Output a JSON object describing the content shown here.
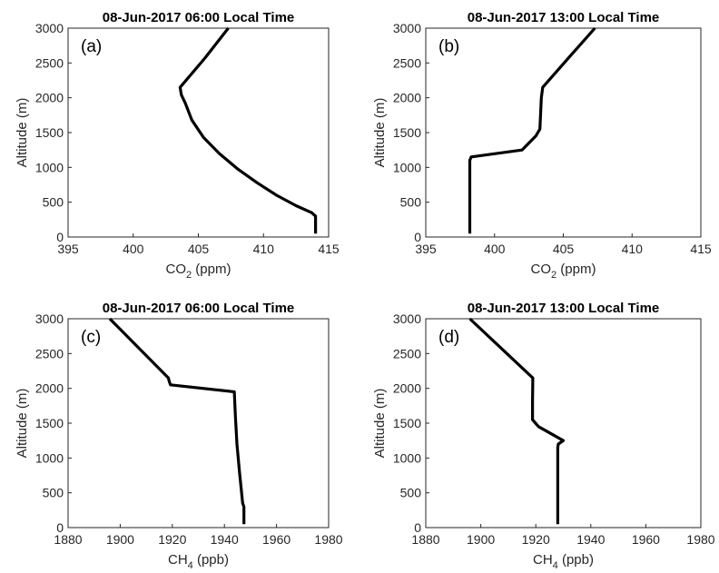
{
  "chart_data": [
    {
      "type": "line",
      "title": "08-Jun-2017 06:00 Local Time",
      "panel_label": "(a)",
      "xlabel_main": "CO",
      "xlabel_sub": "2",
      "xlabel_unit": " (ppm)",
      "ylabel": "Altitude (m)",
      "xlim": [
        395,
        415
      ],
      "ylim": [
        0,
        3000
      ],
      "xticks": [
        "395",
        "400",
        "405",
        "410",
        "415"
      ],
      "yticks": [
        "0",
        "500",
        "1000",
        "1500",
        "2000",
        "2500",
        "3000"
      ],
      "grid": true,
      "series": [
        {
          "x": [
            414.0,
            414.0,
            413.7,
            412.5,
            411.0,
            409.5,
            408.0,
            406.6,
            405.4,
            404.5,
            404.0,
            403.7,
            403.6,
            405.5,
            407.3
          ],
          "y": [
            50,
            300,
            350,
            450,
            600,
            780,
            980,
            1200,
            1430,
            1680,
            1920,
            2040,
            2150,
            2570,
            3000
          ]
        }
      ]
    },
    {
      "type": "line",
      "title": "08-Jun-2017 13:00 Local Time",
      "panel_label": "(b)",
      "xlabel_main": "CO",
      "xlabel_sub": "2",
      "xlabel_unit": " (ppm)",
      "ylabel": "Altitude (m)",
      "xlim": [
        395,
        415
      ],
      "ylim": [
        0,
        3000
      ],
      "xticks": [
        "395",
        "400",
        "405",
        "410",
        "415"
      ],
      "yticks": [
        "0",
        "500",
        "1000",
        "1500",
        "2000",
        "2500",
        "3000"
      ],
      "grid": true,
      "series": [
        {
          "x": [
            398.2,
            398.2,
            398.3,
            402.0,
            403.0,
            403.3,
            403.4,
            403.5,
            405.5,
            407.3
          ],
          "y": [
            50,
            1100,
            1150,
            1250,
            1450,
            1550,
            2000,
            2150,
            2600,
            3000
          ]
        }
      ]
    },
    {
      "type": "line",
      "title": "08-Jun-2017 06:00 Local Time",
      "panel_label": "(c)",
      "xlabel_main": "CH",
      "xlabel_sub": "4",
      "xlabel_unit": " (ppb)",
      "ylabel": "Altitude (m)",
      "xlim": [
        1880,
        1980
      ],
      "ylim": [
        0,
        3000
      ],
      "xticks": [
        "1880",
        "1900",
        "1920",
        "1940",
        "1960",
        "1980"
      ],
      "yticks": [
        "0",
        "500",
        "1000",
        "1500",
        "2000",
        "2500",
        "3000"
      ],
      "grid": true,
      "series": [
        {
          "x": [
            1947.5,
            1947.5,
            1947.0,
            1945.8,
            1944.8,
            1944.2,
            1943.8,
            1919.3,
            1918.8,
            1918.5,
            1896.0
          ],
          "y": [
            50,
            300,
            350,
            800,
            1200,
            1600,
            1950,
            2050,
            2100,
            2150,
            3000
          ]
        }
      ]
    },
    {
      "type": "line",
      "title": "08-Jun-2017 13:00 Local Time",
      "panel_label": "(d)",
      "xlabel_main": "CH",
      "xlabel_sub": "4",
      "xlabel_unit": " (ppb)",
      "ylabel": "Altitude (m)",
      "xlim": [
        1880,
        1980
      ],
      "ylim": [
        0,
        3000
      ],
      "xticks": [
        "1880",
        "1900",
        "1920",
        "1940",
        "1960",
        "1980"
      ],
      "yticks": [
        "0",
        "500",
        "1000",
        "1500",
        "2000",
        "2500",
        "3000"
      ],
      "grid": true,
      "series": [
        {
          "x": [
            1928.0,
            1928.0,
            1928.2,
            1930.0,
            1921.0,
            1918.8,
            1918.8,
            1918.9,
            1896.0
          ],
          "y": [
            50,
            1150,
            1200,
            1250,
            1450,
            1550,
            1800,
            2150,
            3000
          ]
        }
      ]
    }
  ]
}
